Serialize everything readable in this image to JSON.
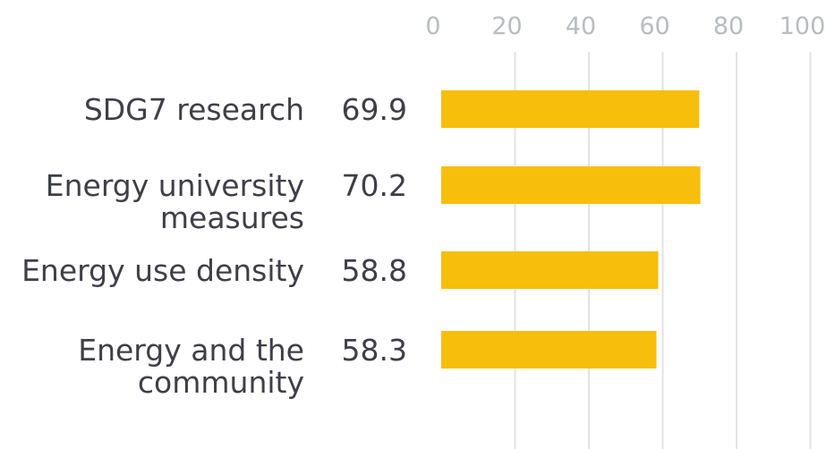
{
  "chart_data": {
    "type": "bar",
    "orientation": "horizontal",
    "categories": [
      [
        "SDG7 research"
      ],
      [
        "Energy university",
        "measures"
      ],
      [
        "Energy use density"
      ],
      [
        "Energy and the",
        "community"
      ]
    ],
    "values": [
      69.9,
      70.2,
      58.8,
      58.3
    ],
    "value_labels": [
      "69.9",
      "70.2",
      "58.8",
      "58.3"
    ],
    "xlim": [
      0,
      100
    ],
    "xticks": [
      0,
      20,
      40,
      60,
      80,
      100
    ],
    "xaxis_position": "top",
    "grid": true,
    "bar_color": "#f7be0b",
    "title": "",
    "xlabel": "",
    "ylabel": ""
  }
}
